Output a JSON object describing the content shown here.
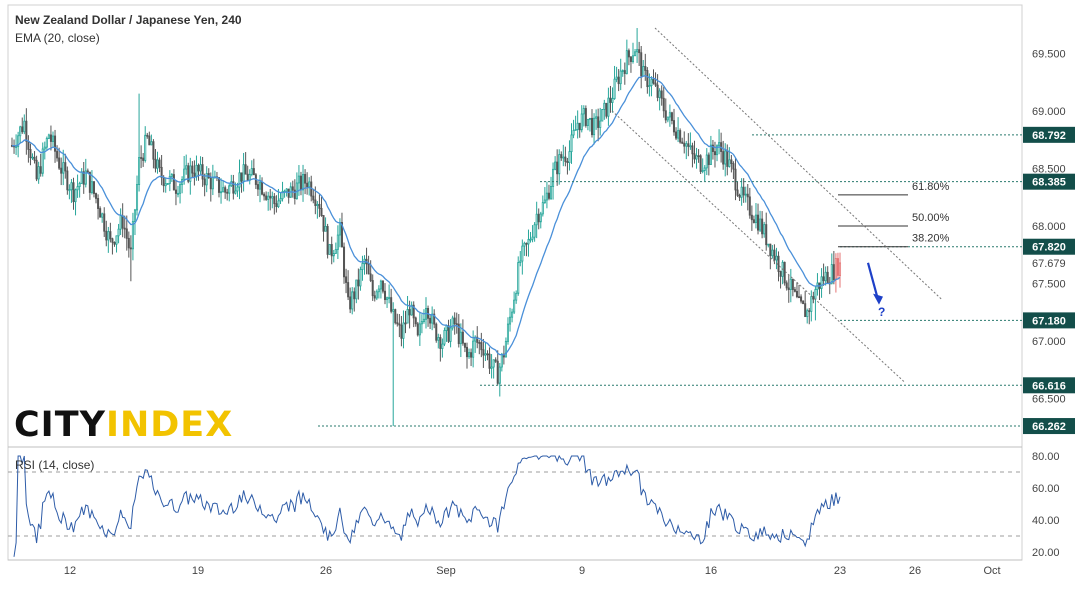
{
  "title": "New Zealand Dollar / Japanese Yen, 240",
  "indicator": "EMA (20, close)",
  "rsi_label": "RSI (14, close)",
  "logo": {
    "part1": "CITY",
    "part2": "INDEX"
  },
  "colors": {
    "up": "#26a69a",
    "down": "#555555",
    "ema": "#4a90d9",
    "rsi": "#2e5ca8",
    "level_line": "#2a7a6e",
    "badge": "#134e4a",
    "arrow": "#1e40c8",
    "channel": "#777777",
    "last_candle": "#e57373"
  },
  "chart_data": [
    {
      "type": "candlestick",
      "title": "New Zealand Dollar / Japanese Yen, 240",
      "ylim": [
        66.08,
        69.92
      ],
      "y_ticks": [
        "69.500",
        "69.000",
        "68.500",
        "68.000",
        "67.500",
        "67.000",
        "66.500"
      ],
      "x_ticks": [
        "12",
        "19",
        "26",
        "Sep",
        "9",
        "16",
        "23",
        "26",
        "Oct"
      ],
      "price_labels": [
        {
          "value": 68.792,
          "label": "68.792",
          "kind": "level"
        },
        {
          "value": 68.385,
          "label": "68.385",
          "kind": "level"
        },
        {
          "value": 67.82,
          "label": "67.820",
          "kind": "level"
        },
        {
          "value": 67.679,
          "label": "67.679",
          "kind": "last"
        },
        {
          "value": 67.18,
          "label": "67.180",
          "kind": "level"
        },
        {
          "value": 66.616,
          "label": "66.616",
          "kind": "level"
        },
        {
          "value": 66.262,
          "label": "66.262",
          "kind": "level"
        }
      ],
      "fibonacci": [
        {
          "value": 68.27,
          "label": "61.80%"
        },
        {
          "value": 68.0,
          "label": "50.00%"
        },
        {
          "value": 67.82,
          "label": "38.20%"
        }
      ],
      "annotation": "?",
      "ohlc_path": [
        [
          0,
          68.7
        ],
        [
          6,
          68.9
        ],
        [
          12,
          68.4
        ],
        [
          18,
          68.8
        ],
        [
          24,
          68.5
        ],
        [
          30,
          68.3
        ],
        [
          36,
          68.45
        ],
        [
          42,
          68.2
        ],
        [
          48,
          67.85
        ],
        [
          54,
          68.05
        ],
        [
          58,
          67.75
        ],
        [
          62,
          68.55
        ],
        [
          66,
          68.75
        ],
        [
          72,
          68.45
        ],
        [
          80,
          68.35
        ],
        [
          88,
          68.5
        ],
        [
          96,
          68.4
        ],
        [
          104,
          68.3
        ],
        [
          112,
          68.45
        ],
        [
          120,
          68.4
        ],
        [
          128,
          68.2
        ],
        [
          136,
          68.3
        ],
        [
          144,
          68.4
        ],
        [
          150,
          68.2
        ],
        [
          155,
          67.75
        ],
        [
          160,
          67.95
        ],
        [
          164,
          67.3
        ],
        [
          168,
          67.45
        ],
        [
          172,
          67.7
        ],
        [
          176,
          67.4
        ],
        [
          180,
          67.55
        ],
        [
          186,
          67.2
        ],
        [
          190,
          67.05
        ],
        [
          194,
          67.3
        ],
        [
          198,
          67.0
        ],
        [
          202,
          67.35
        ],
        [
          206,
          67.1
        ],
        [
          210,
          67.0
        ],
        [
          216,
          67.15
        ],
        [
          222,
          66.85
        ],
        [
          226,
          67.0
        ],
        [
          230,
          66.95
        ],
        [
          234,
          66.78
        ],
        [
          237,
          66.72
        ],
        [
          240,
          66.9
        ],
        [
          244,
          67.3
        ],
        [
          248,
          67.7
        ],
        [
          252,
          67.85
        ],
        [
          256,
          68.1
        ],
        [
          260,
          68.2
        ],
        [
          264,
          68.45
        ],
        [
          268,
          68.6
        ],
        [
          272,
          68.65
        ],
        [
          276,
          68.9
        ],
        [
          280,
          68.95
        ],
        [
          284,
          68.85
        ],
        [
          288,
          68.95
        ],
        [
          292,
          69.1
        ],
        [
          296,
          69.3
        ],
        [
          300,
          69.45
        ],
        [
          304,
          69.55
        ],
        [
          306,
          69.45
        ],
        [
          308,
          69.3
        ],
        [
          312,
          69.25
        ],
        [
          316,
          69.1
        ],
        [
          320,
          68.95
        ],
        [
          324,
          68.85
        ],
        [
          328,
          68.75
        ],
        [
          332,
          68.6
        ],
        [
          336,
          68.55
        ],
        [
          340,
          68.6
        ],
        [
          344,
          68.7
        ],
        [
          348,
          68.6
        ],
        [
          352,
          68.45
        ],
        [
          356,
          68.25
        ],
        [
          360,
          68.15
        ],
        [
          364,
          68.05
        ],
        [
          368,
          67.9
        ],
        [
          372,
          67.75
        ],
        [
          376,
          67.6
        ],
        [
          380,
          67.45
        ],
        [
          384,
          67.3
        ],
        [
          388,
          67.25
        ],
        [
          392,
          67.45
        ],
        [
          396,
          67.55
        ],
        [
          400,
          67.6
        ],
        [
          404,
          67.68
        ]
      ]
    },
    {
      "type": "line",
      "title": "RSI (14, close)",
      "ylim": [
        15,
        85
      ],
      "y_ticks": [
        "80.00",
        "60.00",
        "40.00",
        "20.00"
      ],
      "guides": [
        70,
        30
      ],
      "x_ticks": [
        "12",
        "19",
        "26",
        "Sep",
        "9",
        "16",
        "23",
        "26",
        "Oct"
      ]
    }
  ]
}
